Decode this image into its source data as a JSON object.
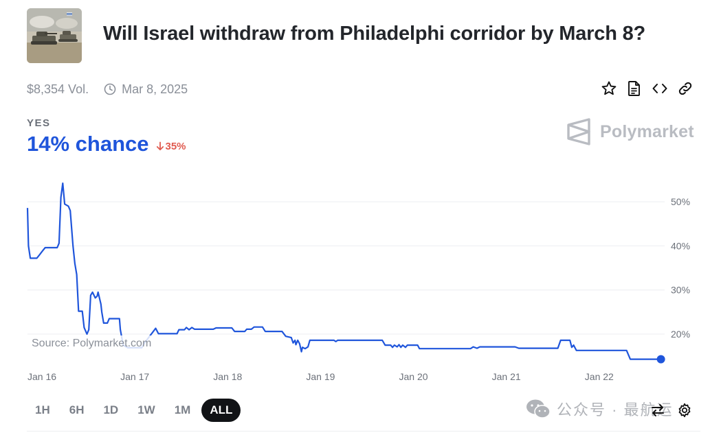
{
  "market": {
    "title": "Will Israel withdraw from Philadelphi corridor by March 8?",
    "volume": "$8,354 Vol.",
    "end_date": "Mar 8, 2025"
  },
  "outcome": {
    "label": "YES",
    "chance": "14% chance",
    "delta": "35%",
    "delta_direction": "down"
  },
  "brand": {
    "name": "Polymarket"
  },
  "source_note": "Source: Polymarket.com",
  "actions": [
    "star-icon",
    "document-icon",
    "code-icon",
    "link-icon"
  ],
  "time_ranges": [
    {
      "label": "1H"
    },
    {
      "label": "6H"
    },
    {
      "label": "1D"
    },
    {
      "label": "1W"
    },
    {
      "label": "1M"
    },
    {
      "label": "ALL",
      "active": true
    }
  ],
  "watermark": {
    "text": "公众号 · 最航运"
  },
  "colors": {
    "line": "#1f55db",
    "down": "#e05a4f",
    "active_range": "#111316"
  },
  "chart_data": {
    "type": "line",
    "title": "",
    "xlabel": "",
    "ylabel": "",
    "xlim": [
      0,
      6.86
    ],
    "ylim": [
      13,
      55
    ],
    "x_ticks": [
      {
        "x": 0,
        "label": "Jan 16"
      },
      {
        "x": 1,
        "label": "Jan 17"
      },
      {
        "x": 2,
        "label": "Jan 18"
      },
      {
        "x": 3,
        "label": "Jan 19"
      },
      {
        "x": 4,
        "label": "Jan 20"
      },
      {
        "x": 5,
        "label": "Jan 21"
      },
      {
        "x": 6,
        "label": "Jan 22"
      }
    ],
    "y_ticks": [
      {
        "y": 20,
        "label": "20%"
      },
      {
        "y": 30,
        "label": "30%"
      },
      {
        "y": 40,
        "label": "40%"
      },
      {
        "y": 50,
        "label": "50%"
      }
    ],
    "grid": true,
    "series": [
      {
        "points": [
          [
            0.0,
            48.6
          ],
          [
            0.01,
            40.0
          ],
          [
            0.03,
            37.2
          ],
          [
            0.1,
            37.2
          ],
          [
            0.13,
            38.0
          ],
          [
            0.16,
            38.8
          ],
          [
            0.19,
            39.6
          ],
          [
            0.32,
            39.6
          ],
          [
            0.34,
            40.6
          ],
          [
            0.36,
            51.0
          ],
          [
            0.38,
            54.2
          ],
          [
            0.4,
            49.5
          ],
          [
            0.44,
            49.0
          ],
          [
            0.46,
            48.0
          ],
          [
            0.49,
            40.0
          ],
          [
            0.51,
            36.0
          ],
          [
            0.53,
            33.5
          ],
          [
            0.55,
            25.2
          ],
          [
            0.59,
            25.2
          ],
          [
            0.61,
            21.5
          ],
          [
            0.64,
            20.0
          ],
          [
            0.66,
            21.0
          ],
          [
            0.68,
            28.8
          ],
          [
            0.7,
            29.5
          ],
          [
            0.73,
            28.2
          ],
          [
            0.75,
            28.6
          ],
          [
            0.76,
            29.5
          ],
          [
            0.79,
            26.8
          ],
          [
            0.8,
            25.0
          ],
          [
            0.82,
            22.5
          ],
          [
            0.86,
            22.5
          ],
          [
            0.88,
            23.5
          ],
          [
            0.99,
            23.5
          ],
          [
            1.0,
            21.0
          ],
          [
            1.03,
            17.5
          ],
          [
            1.08,
            16.9
          ],
          [
            1.23,
            16.9
          ],
          [
            1.26,
            18.0
          ],
          [
            1.38,
            21.3
          ],
          [
            1.41,
            20.1
          ],
          [
            1.61,
            20.1
          ],
          [
            1.63,
            21.0
          ],
          [
            1.69,
            21.0
          ],
          [
            1.71,
            21.5
          ],
          [
            1.74,
            21.0
          ],
          [
            1.77,
            21.5
          ],
          [
            1.8,
            21.1
          ],
          [
            2.0,
            21.1
          ],
          [
            2.03,
            21.4
          ],
          [
            2.2,
            21.4
          ],
          [
            2.23,
            20.6
          ],
          [
            2.34,
            20.6
          ],
          [
            2.36,
            21.1
          ],
          [
            2.41,
            21.1
          ],
          [
            2.44,
            21.6
          ],
          [
            2.53,
            21.6
          ],
          [
            2.56,
            20.6
          ],
          [
            2.74,
            20.6
          ],
          [
            2.78,
            19.5
          ],
          [
            2.84,
            19.2
          ],
          [
            2.86,
            18.0
          ],
          [
            2.88,
            18.6
          ],
          [
            2.89,
            17.6
          ],
          [
            2.91,
            18.6
          ],
          [
            2.93,
            17.8
          ],
          [
            2.95,
            16.0
          ],
          [
            2.96,
            17.0
          ],
          [
            2.99,
            16.7
          ],
          [
            3.02,
            17.1
          ],
          [
            3.04,
            18.6
          ],
          [
            3.3,
            18.6
          ],
          [
            3.32,
            18.3
          ],
          [
            3.34,
            18.6
          ],
          [
            3.82,
            18.6
          ],
          [
            3.85,
            17.5
          ],
          [
            3.91,
            17.5
          ],
          [
            3.93,
            17.0
          ],
          [
            3.95,
            17.5
          ],
          [
            3.98,
            17.1
          ],
          [
            4.0,
            17.6
          ],
          [
            4.02,
            17.0
          ],
          [
            4.04,
            17.5
          ],
          [
            4.07,
            17.0
          ],
          [
            4.09,
            17.5
          ],
          [
            4.2,
            17.5
          ],
          [
            4.22,
            16.7
          ],
          [
            4.77,
            16.7
          ],
          [
            4.8,
            17.1
          ],
          [
            4.84,
            16.8
          ],
          [
            4.87,
            17.1
          ],
          [
            5.08,
            17.1
          ],
          [
            5.12,
            17.1
          ],
          [
            5.25,
            17.1
          ],
          [
            5.29,
            16.8
          ],
          [
            5.71,
            16.8
          ],
          [
            5.74,
            18.6
          ],
          [
            5.84,
            18.6
          ],
          [
            5.86,
            17.0
          ],
          [
            5.88,
            17.5
          ],
          [
            5.91,
            16.3
          ],
          [
            6.45,
            16.3
          ],
          [
            6.49,
            14.3
          ],
          [
            6.82,
            14.3
          ]
        ]
      }
    ]
  }
}
